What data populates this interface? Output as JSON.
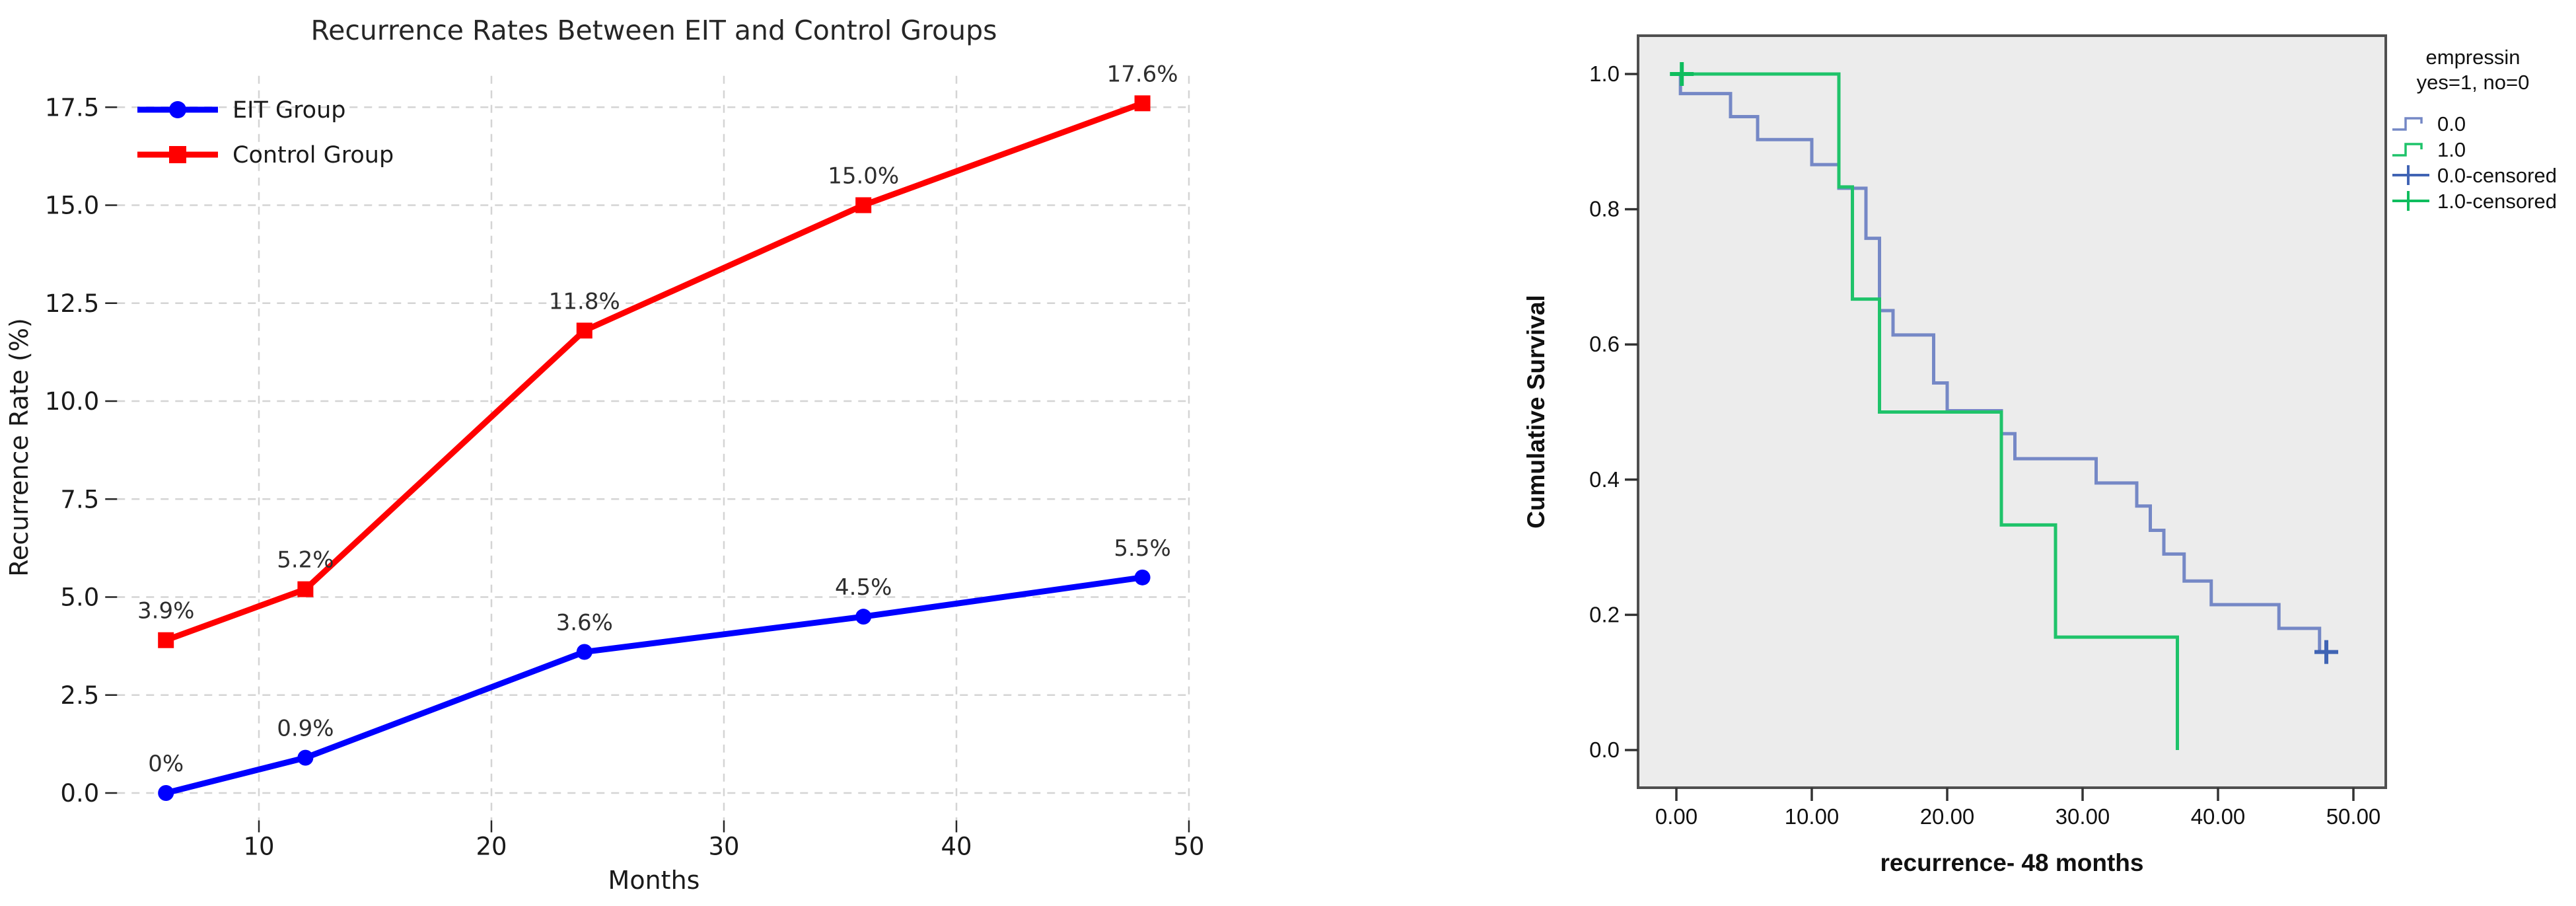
{
  "page": {
    "background": "#ffffff"
  },
  "chart_data": [
    {
      "id": "recurrence-line-chart",
      "type": "line",
      "title": "Recurrence Rates Between EIT and Control Groups",
      "xlabel": "Months",
      "ylabel": "Recurrence Rate (%)",
      "x": [
        6,
        12,
        24,
        36,
        48
      ],
      "x_ticks": [
        10,
        20,
        30,
        40,
        50
      ],
      "y_ticks": [
        0.0,
        2.5,
        5.0,
        7.5,
        10.0,
        12.5,
        15.0,
        17.5
      ],
      "xlim": [
        3.9,
        50.1
      ],
      "ylim": [
        -0.7,
        18.3
      ],
      "grid": "dashed",
      "grid_color": "#d4d4d4",
      "legend_position": "upper-left",
      "series": [
        {
          "name": "EIT Group",
          "color": "#0000ff",
          "marker": "circle",
          "values": [
            0.0,
            0.9,
            3.6,
            4.5,
            5.5
          ],
          "labels": [
            "0%",
            "0.9%",
            "3.6%",
            "4.5%",
            "5.5%"
          ]
        },
        {
          "name": "Control Group",
          "color": "#ff0000",
          "marker": "square",
          "values": [
            3.9,
            5.2,
            11.8,
            15.0,
            17.6
          ],
          "labels": [
            "3.9%",
            "5.2%",
            "11.8%",
            "15.0%",
            "17.6%"
          ]
        }
      ]
    },
    {
      "id": "km-survival-chart",
      "type": "km-step",
      "title": "",
      "xlabel": "recurrence- 48 months",
      "ylabel": "Cumulative Survival",
      "x_ticks": [
        "0.00",
        "10.00",
        "20.00",
        "30.00",
        "40.00",
        "50.00"
      ],
      "x_tick_values": [
        0,
        10,
        20,
        30,
        40,
        50
      ],
      "y_ticks": [
        "0.0",
        "0.2",
        "0.4",
        "0.6",
        "0.8",
        "1.0"
      ],
      "y_tick_values": [
        0,
        0.2,
        0.4,
        0.6,
        0.8,
        1.0
      ],
      "xlim": [
        -2.8,
        52.4
      ],
      "ylim": [
        -0.056,
        1.058
      ],
      "plot_background": "#ececec",
      "border_color": "#4f4f4f",
      "legend_title_lines": [
        "empressin",
        "yes=1, no=0"
      ],
      "legend_entries": [
        {
          "label": "0.0",
          "glyph": "step",
          "color": "#7588c6"
        },
        {
          "label": "1.0",
          "glyph": "step",
          "color": "#1fc36a"
        },
        {
          "label": "0.0-censored",
          "glyph": "plus",
          "color": "#4064b4"
        },
        {
          "label": "1.0-censored",
          "glyph": "plus",
          "color": "#0fbd5e"
        }
      ],
      "series": [
        {
          "name": "0.0",
          "color": "#7588c6",
          "start": 1.0,
          "steps": [
            [
              0.3,
              0.971
            ],
            [
              4,
              0.937
            ],
            [
              6,
              0.903
            ],
            [
              10,
              0.866
            ],
            [
              12,
              0.831
            ],
            [
              14,
              0.757
            ],
            [
              15,
              0.65
            ],
            [
              16,
              0.614
            ],
            [
              19,
              0.543
            ],
            [
              20,
              0.502
            ],
            [
              24,
              0.468
            ],
            [
              25,
              0.431
            ],
            [
              31,
              0.395
            ],
            [
              34,
              0.361
            ],
            [
              35,
              0.325
            ],
            [
              36,
              0.29
            ],
            [
              37.5,
              0.25
            ],
            [
              39.5,
              0.215
            ],
            [
              44.5,
              0.18
            ],
            [
              47.5,
              0.145
            ]
          ],
          "end": 48.7,
          "censored": [
            [
              48,
              0.145
            ]
          ],
          "censor_color": "#4064b4"
        },
        {
          "name": "1.0",
          "color": "#1fc36a",
          "start": 1.0,
          "steps": [
            [
              12,
              0.833
            ],
            [
              13,
              0.667
            ],
            [
              15,
              0.5
            ],
            [
              24,
              0.333
            ],
            [
              28,
              0.167
            ],
            [
              37,
              0.0
            ]
          ],
          "end": 37,
          "censored": [
            [
              0.4,
              1.0
            ]
          ],
          "censor_color": "#0fbd5e"
        }
      ]
    }
  ]
}
